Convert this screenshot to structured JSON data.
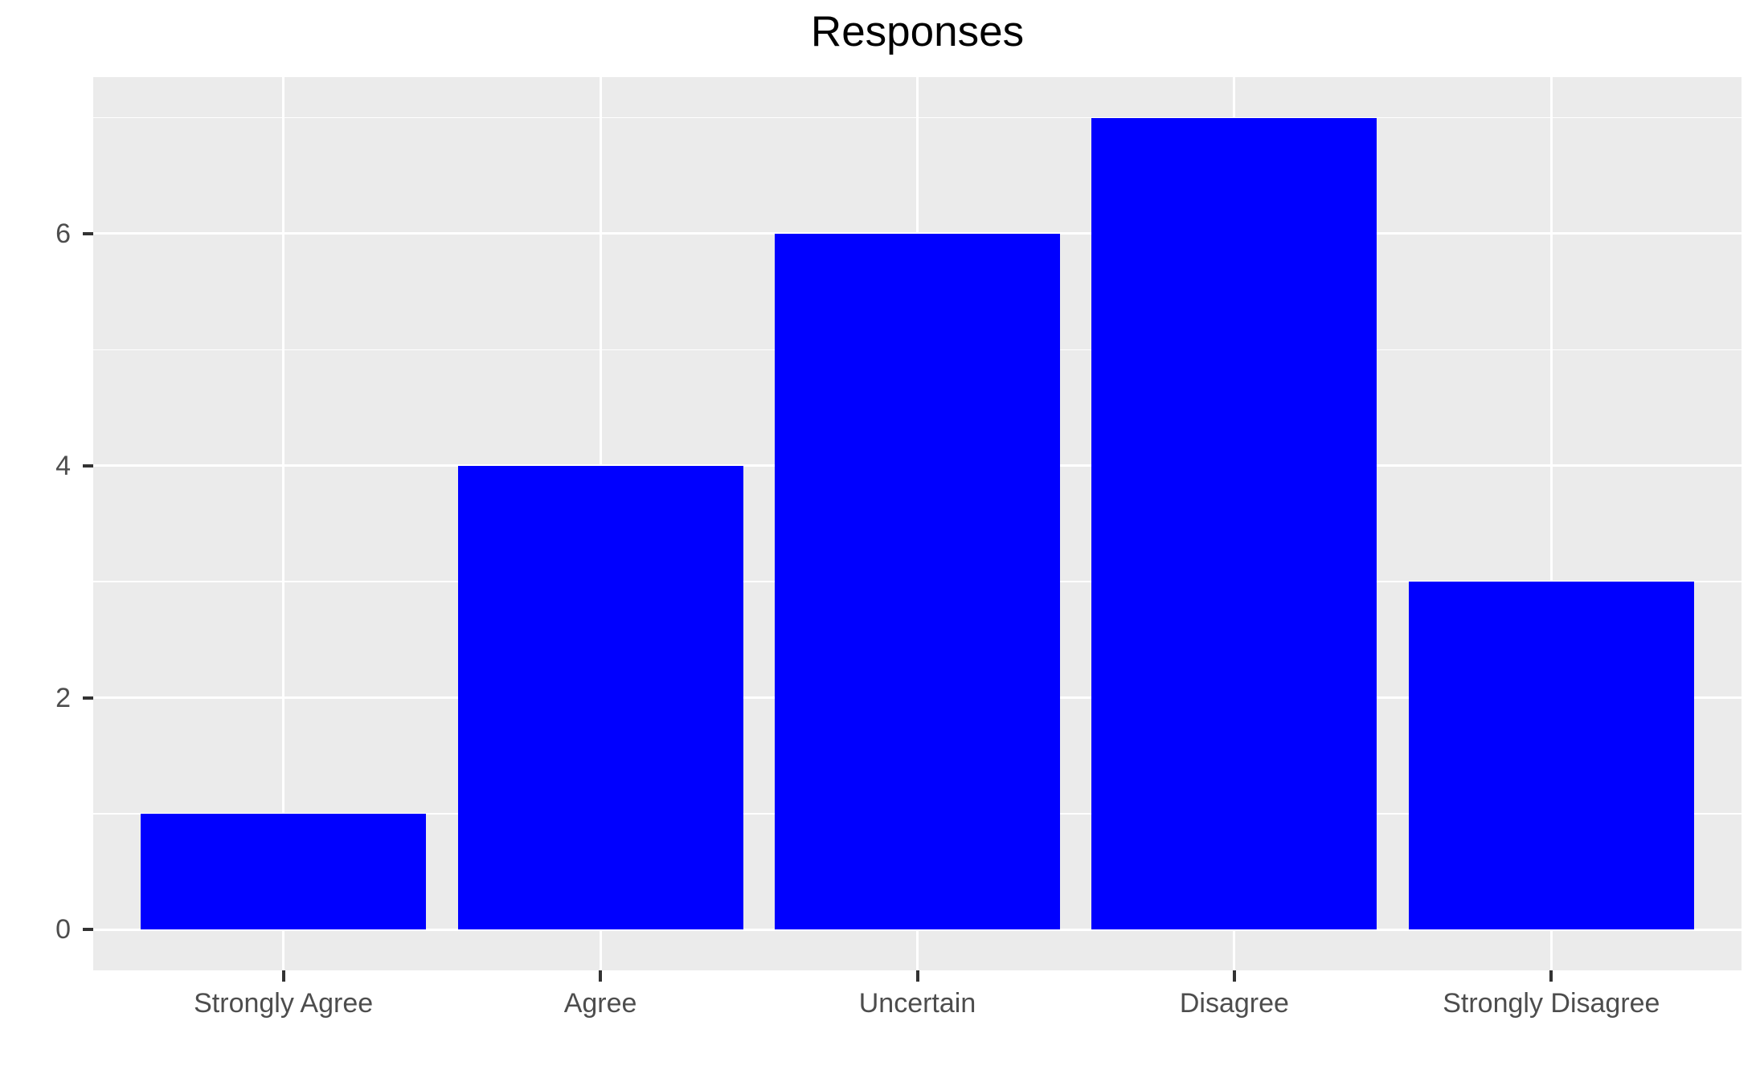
{
  "chart_data": {
    "type": "bar",
    "title": "Responses",
    "categories": [
      "Strongly Agree",
      "Agree",
      "Uncertain",
      "Disagree",
      "Strongly Disagree"
    ],
    "values": [
      1,
      4,
      6,
      7,
      3
    ],
    "xlabel": "",
    "ylabel": "",
    "ylim": [
      -0.35,
      7.35
    ],
    "yticks_major": [
      0,
      2,
      4,
      6
    ],
    "yticks_minor": [
      1,
      3,
      5,
      7
    ],
    "grid": "on",
    "legend": "none",
    "bar_width_fraction": 0.9,
    "colors": {
      "bar_fill": "#0000FF",
      "panel_background": "#EBEBEB",
      "gridline": "#FFFFFF",
      "tick_mark": "#333333",
      "axis_text": "#4D4D4D",
      "title_text": "#000000",
      "figure_background": "#FFFFFF"
    }
  }
}
